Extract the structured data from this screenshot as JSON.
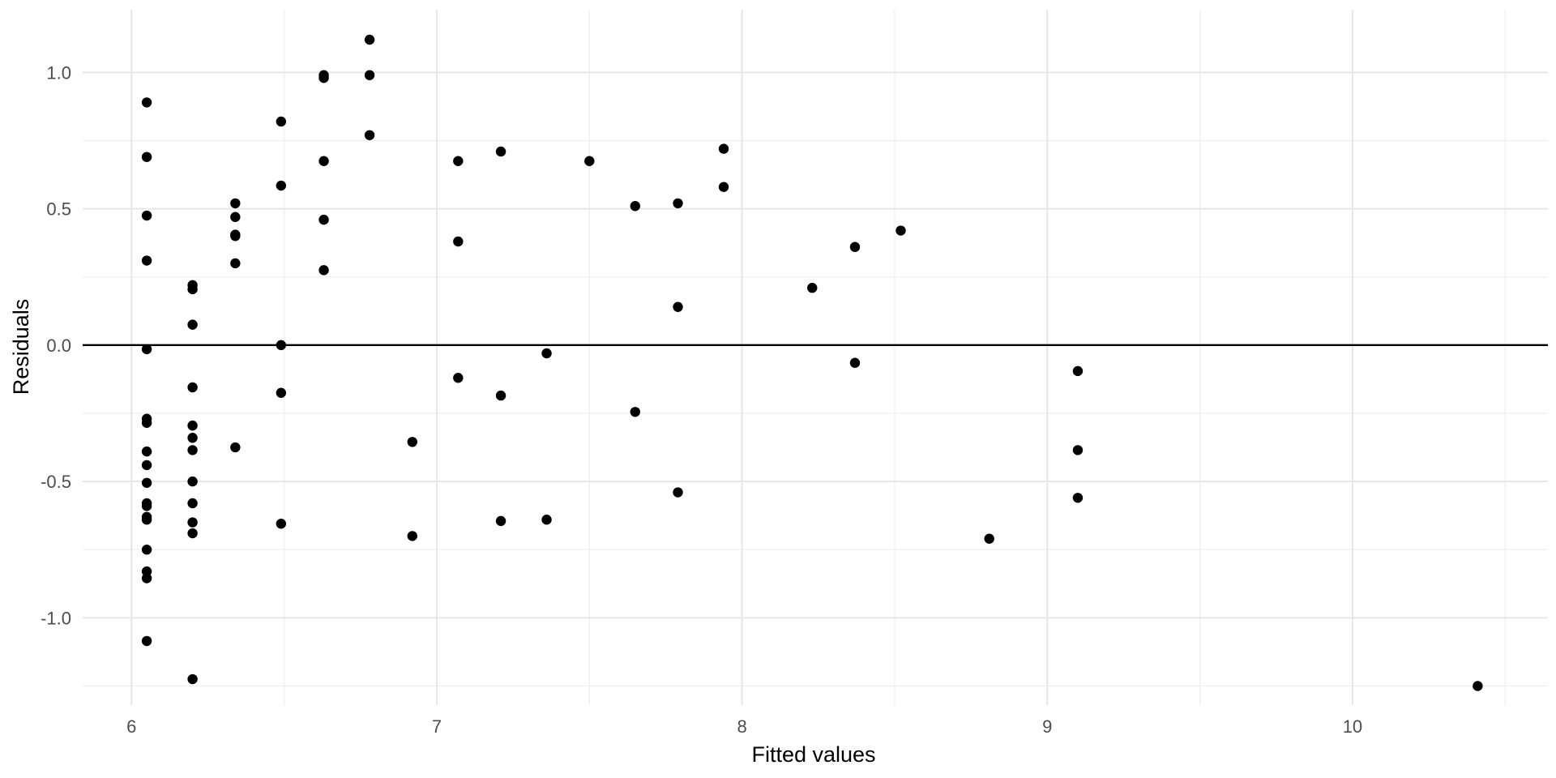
{
  "chart_data": {
    "type": "scatter",
    "title": "",
    "xlabel": "Fitted values",
    "ylabel": "Residuals",
    "xlim": [
      5.84,
      10.64
    ],
    "ylim": [
      -1.32,
      1.23
    ],
    "x_ticks": [
      6,
      7,
      8,
      9,
      10
    ],
    "x_tick_labels": [
      "6",
      "7",
      "8",
      "9",
      "10"
    ],
    "x_minor": [
      6.5,
      7.5,
      8.5,
      9.5,
      10.5
    ],
    "y_ticks": [
      -1.0,
      -0.5,
      0.0,
      0.5,
      1.0
    ],
    "y_tick_labels": [
      "-1.0",
      "-0.5",
      "0.0",
      "0.5",
      "1.0"
    ],
    "y_minor": [
      -1.25,
      -0.75,
      -0.25,
      0.25,
      0.75
    ],
    "reference_line": {
      "y": 0.0,
      "color": "#000000"
    },
    "grid": true,
    "point_color": "#000000",
    "points": [
      {
        "x": 6.05,
        "y": 0.89
      },
      {
        "x": 6.05,
        "y": 0.69
      },
      {
        "x": 6.05,
        "y": 0.475
      },
      {
        "x": 6.05,
        "y": 0.31
      },
      {
        "x": 6.05,
        "y": -0.015
      },
      {
        "x": 6.05,
        "y": -0.27
      },
      {
        "x": 6.05,
        "y": -0.285
      },
      {
        "x": 6.05,
        "y": -0.39
      },
      {
        "x": 6.05,
        "y": -0.44
      },
      {
        "x": 6.05,
        "y": -0.505
      },
      {
        "x": 6.05,
        "y": -0.58
      },
      {
        "x": 6.05,
        "y": -0.59
      },
      {
        "x": 6.05,
        "y": -0.63
      },
      {
        "x": 6.05,
        "y": -0.64
      },
      {
        "x": 6.05,
        "y": -0.75
      },
      {
        "x": 6.05,
        "y": -0.83
      },
      {
        "x": 6.05,
        "y": -0.855
      },
      {
        "x": 6.05,
        "y": -1.085
      },
      {
        "x": 6.2,
        "y": 0.22
      },
      {
        "x": 6.2,
        "y": 0.205
      },
      {
        "x": 6.2,
        "y": 0.075
      },
      {
        "x": 6.2,
        "y": -0.155
      },
      {
        "x": 6.2,
        "y": -0.295
      },
      {
        "x": 6.2,
        "y": -0.34
      },
      {
        "x": 6.2,
        "y": -0.385
      },
      {
        "x": 6.2,
        "y": -0.5
      },
      {
        "x": 6.2,
        "y": -0.58
      },
      {
        "x": 6.2,
        "y": -0.65
      },
      {
        "x": 6.2,
        "y": -0.69
      },
      {
        "x": 6.2,
        "y": -1.225
      },
      {
        "x": 6.34,
        "y": 0.52
      },
      {
        "x": 6.34,
        "y": 0.47
      },
      {
        "x": 6.34,
        "y": 0.405
      },
      {
        "x": 6.34,
        "y": 0.4
      },
      {
        "x": 6.34,
        "y": 0.3
      },
      {
        "x": 6.34,
        "y": -0.375
      },
      {
        "x": 6.49,
        "y": 0.82
      },
      {
        "x": 6.49,
        "y": 0.585
      },
      {
        "x": 6.49,
        "y": 0.0
      },
      {
        "x": 6.49,
        "y": -0.175
      },
      {
        "x": 6.49,
        "y": -0.655
      },
      {
        "x": 6.63,
        "y": 0.99
      },
      {
        "x": 6.63,
        "y": 0.98
      },
      {
        "x": 6.63,
        "y": 0.675
      },
      {
        "x": 6.63,
        "y": 0.46
      },
      {
        "x": 6.63,
        "y": 0.275
      },
      {
        "x": 6.78,
        "y": 1.12
      },
      {
        "x": 6.78,
        "y": 0.99
      },
      {
        "x": 6.78,
        "y": 0.77
      },
      {
        "x": 6.92,
        "y": -0.355
      },
      {
        "x": 6.92,
        "y": -0.7
      },
      {
        "x": 7.07,
        "y": 0.675
      },
      {
        "x": 7.07,
        "y": 0.38
      },
      {
        "x": 7.07,
        "y": -0.12
      },
      {
        "x": 7.21,
        "y": 0.71
      },
      {
        "x": 7.21,
        "y": -0.185
      },
      {
        "x": 7.21,
        "y": -0.645
      },
      {
        "x": 7.36,
        "y": -0.03
      },
      {
        "x": 7.36,
        "y": -0.64
      },
      {
        "x": 7.5,
        "y": 0.675
      },
      {
        "x": 7.65,
        "y": 0.51
      },
      {
        "x": 7.65,
        "y": -0.245
      },
      {
        "x": 7.79,
        "y": 0.52
      },
      {
        "x": 7.79,
        "y": 0.14
      },
      {
        "x": 7.79,
        "y": -0.54
      },
      {
        "x": 7.94,
        "y": 0.72
      },
      {
        "x": 7.94,
        "y": 0.58
      },
      {
        "x": 8.23,
        "y": 0.21
      },
      {
        "x": 8.37,
        "y": 0.36
      },
      {
        "x": 8.37,
        "y": -0.065
      },
      {
        "x": 8.52,
        "y": 0.42
      },
      {
        "x": 8.81,
        "y": -0.71
      },
      {
        "x": 9.1,
        "y": -0.095
      },
      {
        "x": 9.1,
        "y": -0.385
      },
      {
        "x": 9.1,
        "y": -0.56
      },
      {
        "x": 10.41,
        "y": -1.25
      }
    ]
  }
}
